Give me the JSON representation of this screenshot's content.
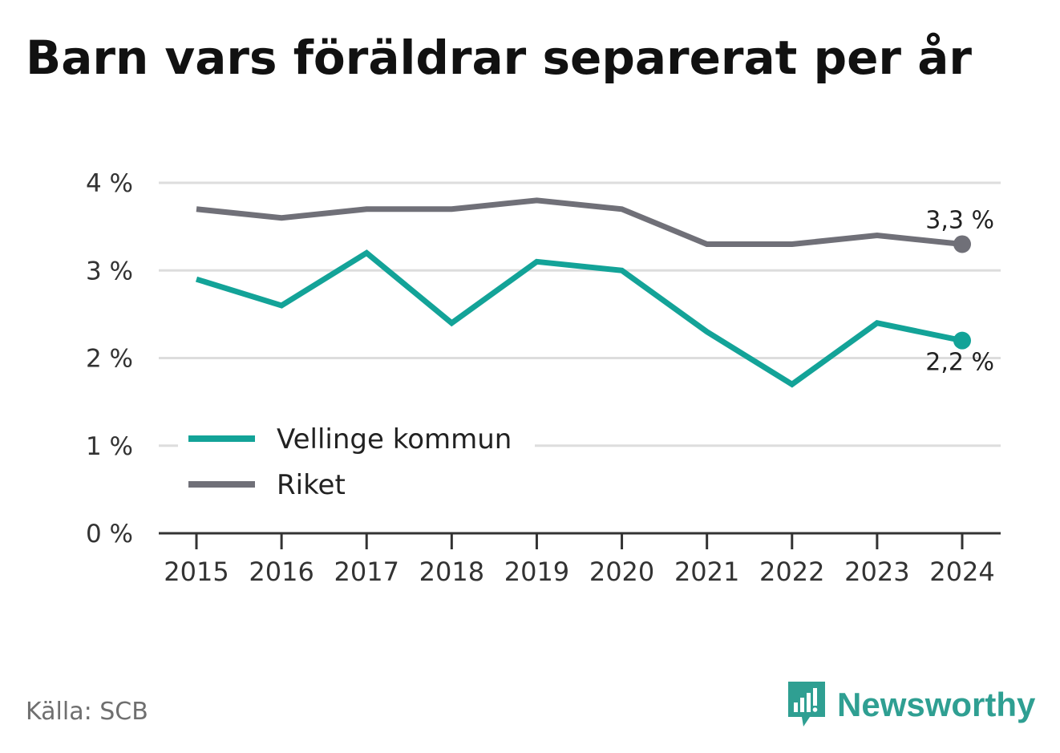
{
  "title": "Barn vars föräldrar separerat per år",
  "source": "Källa: SCB",
  "brand": {
    "name": "Newsworthy",
    "icon": "newsworthy-logo-icon"
  },
  "colors": {
    "vellinge": "#13a398",
    "riket": "#707078",
    "grid": "#dddddd",
    "axis": "#333333",
    "brand": "#2f9f92"
  },
  "chart_data": {
    "type": "line",
    "x": [
      "2015",
      "2016",
      "2017",
      "2018",
      "2019",
      "2020",
      "2021",
      "2022",
      "2023",
      "2024"
    ],
    "y_ticks": [
      "0 %",
      "1 %",
      "2 %",
      "3 %",
      "4 %"
    ],
    "ylim": [
      0,
      4
    ],
    "grid": true,
    "legend_position": "bottom-left",
    "series": [
      {
        "name": "Vellinge kommun",
        "color": "#13a398",
        "values": [
          2.9,
          2.6,
          3.2,
          2.4,
          3.1,
          3.0,
          2.3,
          1.7,
          2.4,
          2.2
        ],
        "end_label": "2,2 %"
      },
      {
        "name": "Riket",
        "color": "#707078",
        "values": [
          3.7,
          3.6,
          3.7,
          3.7,
          3.8,
          3.7,
          3.3,
          3.3,
          3.4,
          3.3
        ],
        "end_label": "3,3 %"
      }
    ]
  }
}
